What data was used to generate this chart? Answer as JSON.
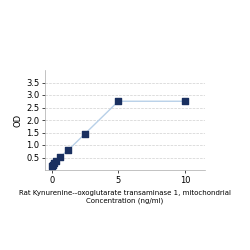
{
  "x": [
    0,
    0.078,
    0.156,
    0.313,
    0.625,
    1.25,
    2.5,
    5,
    10
  ],
  "y": [
    0.175,
    0.195,
    0.27,
    0.38,
    0.52,
    0.8,
    1.45,
    2.75,
    2.75
  ],
  "xlabel_line1": "Rat Kynurenine--oxoglutarate transaminase 1, mitochondrial",
  "xlabel_line2": "Concentration (ng/ml)",
  "ylabel": "OD",
  "xlim": [
    -0.5,
    11.5
  ],
  "ylim": [
    0,
    4.0
  ],
  "yticks": [
    0.5,
    1.0,
    1.5,
    2.0,
    2.5,
    3.0,
    3.5
  ],
  "xticks": [
    0,
    5,
    10
  ],
  "line_color": "#b8d0e8",
  "marker_color": "#1a3060",
  "marker_size": 18,
  "line_width": 1.0,
  "grid_color": "#d0d0d0",
  "background_color": "#ffffff",
  "ylabel_fontsize": 6,
  "xlabel_fontsize": 5,
  "tick_fontsize": 6
}
